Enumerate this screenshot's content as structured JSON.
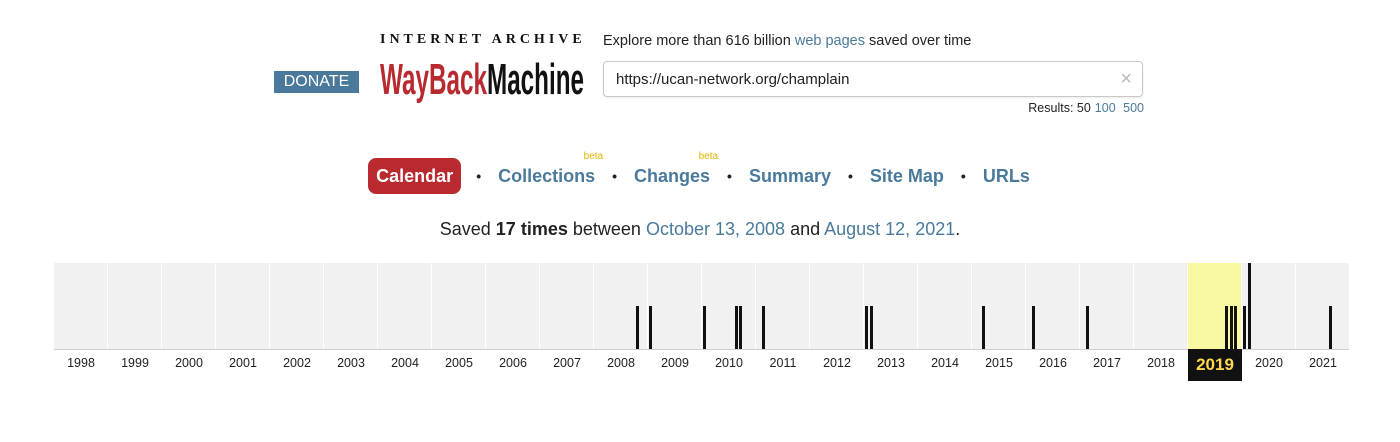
{
  "header": {
    "donate_label": "DONATE",
    "logo_top": "INTERNET ARCHIVE",
    "logo_main": "WayBackMachine",
    "tagline_prefix": "Explore more than 616 billion",
    "tagline_link": "web pages",
    "tagline_suffix": "saved over time",
    "search_value": "https://ucan-network.org/champlain",
    "clear_icon": "×",
    "results_label": "Results: 50",
    "results_100": "100",
    "results_500": "500"
  },
  "tabs": [
    {
      "label": "Calendar",
      "active": true,
      "beta": ""
    },
    {
      "label": "Collections",
      "active": false,
      "beta": "beta"
    },
    {
      "label": "Changes",
      "active": false,
      "beta": "beta"
    },
    {
      "label": "Summary",
      "active": false,
      "beta": ""
    },
    {
      "label": "Site Map",
      "active": false,
      "beta": ""
    },
    {
      "label": "URLs",
      "active": false,
      "beta": ""
    }
  ],
  "saved": {
    "prefix": "Saved",
    "count": "17 times",
    "between": "between",
    "first": "October 13, 2008",
    "and": "and",
    "last": "August 12, 2021",
    "end": "."
  },
  "timeline": {
    "years": [
      "1998",
      "1999",
      "2000",
      "2001",
      "2002",
      "2003",
      "2004",
      "2005",
      "2006",
      "2007",
      "2008",
      "2009",
      "2010",
      "2011",
      "2012",
      "2013",
      "2014",
      "2015",
      "2016",
      "2017",
      "2018",
      "2019",
      "2020",
      "2021"
    ],
    "selected_year": "2019",
    "captures": [
      {
        "year": 2008,
        "month": 10,
        "level": 0.5
      },
      {
        "year": 2009,
        "month": 1,
        "level": 0.5
      },
      {
        "year": 2010,
        "month": 1,
        "level": 0.5
      },
      {
        "year": 2010,
        "month": 8,
        "level": 0.5
      },
      {
        "year": 2010,
        "month": 9,
        "level": 0.5
      },
      {
        "year": 2011,
        "month": 2,
        "level": 0.5
      },
      {
        "year": 2013,
        "month": 1,
        "level": 0.5
      },
      {
        "year": 2013,
        "month": 2,
        "level": 0.5
      },
      {
        "year": 2015,
        "month": 3,
        "level": 0.5
      },
      {
        "year": 2016,
        "month": 2,
        "level": 0.5
      },
      {
        "year": 2017,
        "month": 2,
        "level": 0.5
      },
      {
        "year": 2019,
        "month": 9,
        "level": 0.5
      },
      {
        "year": 2019,
        "month": 10,
        "level": 0.5
      },
      {
        "year": 2019,
        "month": 11,
        "level": 0.5
      },
      {
        "year": 2020,
        "month": 1,
        "level": 0.5
      },
      {
        "year": 2020,
        "month": 2,
        "level": 1.0
      },
      {
        "year": 2021,
        "month": 8,
        "level": 0.5
      }
    ]
  },
  "colors": {
    "accent_blue": "#4a7a9b",
    "active_tab_red": "#b82a2f",
    "selected_year_bg": "#f9f9a3",
    "selected_year_label": "#ffd84c"
  }
}
